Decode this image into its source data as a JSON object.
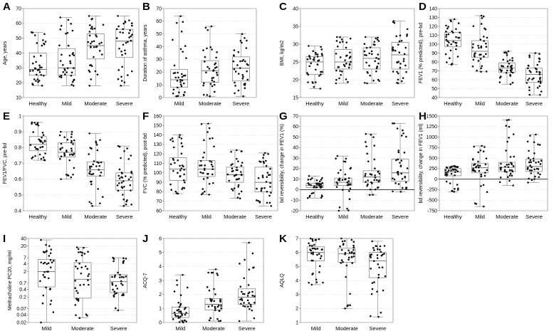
{
  "chart_data": [
    {
      "panel": "A",
      "type": "box",
      "ylabel": "Age, years",
      "ylim": [
        10,
        70
      ],
      "scale": "linear",
      "yticks": [
        10,
        20,
        30,
        40,
        50,
        60,
        70
      ],
      "categories": [
        "Healthy",
        "Mild",
        "Moderate",
        "Severe"
      ],
      "boxes": [
        {
          "min": 18,
          "q1": 25,
          "median": 29,
          "q3": 40,
          "max": 54
        },
        {
          "min": 18,
          "q1": 25,
          "median": 30,
          "q3": 43,
          "max": 64
        },
        {
          "min": 18,
          "q1": 36,
          "median": 45,
          "q3": 53,
          "max": 65
        },
        {
          "min": 18,
          "q1": 37,
          "median": 48,
          "q3": 56,
          "max": 65
        }
      ]
    },
    {
      "panel": "B",
      "type": "box",
      "ylabel": "Duration of asthma, years",
      "ylim": [
        0,
        70
      ],
      "scale": "linear",
      "yticks": [
        0,
        10,
        20,
        30,
        40,
        50,
        60,
        70
      ],
      "categories": [
        "Mild",
        "Moderate",
        "Severe"
      ],
      "boxes": [
        {
          "min": 1,
          "q1": 8,
          "median": 14,
          "q3": 22,
          "max": 64
        },
        {
          "min": 1,
          "q1": 12,
          "median": 21,
          "q3": 29,
          "max": 56
        },
        {
          "min": 1,
          "q1": 13,
          "median": 23,
          "q3": 32,
          "max": 50
        }
      ]
    },
    {
      "panel": "C",
      "type": "box",
      "ylabel": "BMI, kg/m2",
      "ylim": [
        15,
        40
      ],
      "scale": "linear",
      "yticks": [
        15,
        20,
        25,
        30,
        35,
        40
      ],
      "categories": [
        "Healthy",
        "Mild",
        "Moderate",
        "Severe"
      ],
      "boxes": [
        {
          "min": 17.5,
          "q1": 21.5,
          "median": 25,
          "q3": 26.5,
          "max": 29.5
        },
        {
          "min": 19,
          "q1": 23,
          "median": 25,
          "q3": 28.5,
          "max": 32
        },
        {
          "min": 19,
          "q1": 23,
          "median": 26,
          "q3": 29,
          "max": 32
        },
        {
          "min": 19,
          "q1": 23,
          "median": 27,
          "q3": 30.5,
          "max": 36.5
        }
      ]
    },
    {
      "panel": "D",
      "type": "box",
      "ylabel": "FEV1 (% predicted), pre-bd",
      "ylim": [
        40,
        140
      ],
      "scale": "linear",
      "yticks": [
        40,
        50,
        60,
        70,
        80,
        90,
        100,
        110,
        120,
        130,
        140
      ],
      "categories": [
        "Healthy",
        "Mild",
        "Moderate",
        "Severe"
      ],
      "boxes": [
        {
          "min": 77,
          "q1": 97,
          "median": 104,
          "q3": 113,
          "max": 128
        },
        {
          "min": 69,
          "q1": 85,
          "median": 92,
          "q3": 104,
          "max": 132
        },
        {
          "min": 55,
          "q1": 68,
          "median": 73,
          "q3": 79,
          "max": 92
        },
        {
          "min": 43,
          "q1": 57,
          "median": 66,
          "q3": 73,
          "max": 90
        }
      ]
    },
    {
      "panel": "E",
      "type": "box",
      "ylabel": "FEV1/FVC, pre-bd",
      "ylim": [
        0.4,
        1.0
      ],
      "scale": "linear",
      "yticks": [
        0.4,
        0.5,
        0.6,
        0.7,
        0.8,
        0.9,
        1.0
      ],
      "ytick_labels": [
        "0.4",
        "0.5",
        "0.6",
        "0.7",
        "0.8",
        "0.9",
        "1"
      ],
      "categories": [
        "Healthy",
        "Mild",
        "Moderate",
        "Severe"
      ],
      "boxes": [
        {
          "min": 0.72,
          "q1": 0.78,
          "median": 0.82,
          "q3": 0.87,
          "max": 0.96
        },
        {
          "min": 0.6,
          "q1": 0.74,
          "median": 0.77,
          "q3": 0.83,
          "max": 0.9
        },
        {
          "min": 0.43,
          "q1": 0.62,
          "median": 0.66,
          "q3": 0.71,
          "max": 0.89
        },
        {
          "min": 0.43,
          "q1": 0.53,
          "median": 0.59,
          "q3": 0.64,
          "max": 0.81
        }
      ]
    },
    {
      "panel": "F",
      "type": "box",
      "ylabel": "FVC (% predicted), post-bd",
      "ylim": [
        60,
        160
      ],
      "scale": "linear",
      "yticks": [
        60,
        70,
        80,
        90,
        100,
        110,
        120,
        130,
        140,
        150,
        160
      ],
      "categories": [
        "Healthy",
        "Mild",
        "Moderate",
        "Severe"
      ],
      "boxes": [
        {
          "min": 78,
          "q1": 92,
          "median": 104,
          "q3": 116,
          "max": 140
        },
        {
          "min": 77,
          "q1": 96,
          "median": 104,
          "q3": 113,
          "max": 152
        },
        {
          "min": 73,
          "q1": 90,
          "median": 98,
          "q3": 106,
          "max": 124
        },
        {
          "min": 65,
          "q1": 80,
          "median": 90,
          "q3": 106,
          "max": 121
        }
      ]
    },
    {
      "panel": "G",
      "type": "box",
      "ylabel": "bd reversibility, change in FEV1 (%)",
      "ylim": [
        -20,
        70
      ],
      "scale": "linear",
      "yticks": [
        -20,
        -10,
        0,
        10,
        20,
        30,
        40,
        50,
        60,
        70
      ],
      "zero_line": true,
      "categories": [
        "Healthy",
        "Mild",
        "Moderate",
        "Severe"
      ],
      "boxes": [
        {
          "min": -8,
          "q1": 2,
          "median": 4,
          "q3": 6,
          "max": 13
        },
        {
          "min": -20,
          "q1": 4,
          "median": 7,
          "q3": 11,
          "max": 32
        },
        {
          "min": -5,
          "q1": 7,
          "median": 12,
          "q3": 18,
          "max": 53
        },
        {
          "min": -2,
          "q1": 8,
          "median": 16,
          "q3": 29,
          "max": 63
        }
      ]
    },
    {
      "panel": "H",
      "type": "box",
      "ylabel": "bd reversibility, change in FEV1 (ml)",
      "ylim": [
        -750,
        1500
      ],
      "scale": "linear",
      "yticks": [
        -750,
        -500,
        -250,
        0,
        250,
        500,
        750,
        1000,
        1250,
        1500
      ],
      "zero_line": true,
      "categories": [
        "Healthy",
        "Mild",
        "Moderate",
        "Severe"
      ],
      "boxes": [
        {
          "min": -300,
          "q1": 80,
          "median": 170,
          "q3": 250,
          "max": 310
        },
        {
          "min": -650,
          "q1": 150,
          "median": 270,
          "q3": 380,
          "max": 790
        },
        {
          "min": -150,
          "q1": 180,
          "median": 280,
          "q3": 400,
          "max": 1410
        },
        {
          "min": -80,
          "q1": 180,
          "median": 300,
          "q3": 480,
          "max": 1060
        }
      ]
    },
    {
      "panel": "I",
      "type": "box",
      "ylabel": "Methacholine PC20, mg/ml",
      "ylim": [
        0.02,
        40
      ],
      "scale": "log",
      "yticks": [
        0.02,
        0.04,
        0.07,
        0.2,
        0.4,
        0.7,
        2,
        4,
        7,
        20,
        40
      ],
      "ytick_labels": [
        "0.02",
        "0.04",
        "0.07",
        "0.2",
        "0.4",
        "0.7",
        "2",
        "4",
        "7",
        "20",
        "40"
      ],
      "categories": [
        "Mild",
        "Moderate",
        "Severe"
      ],
      "boxes": [
        {
          "min": 0.02,
          "q1": 0.5,
          "median": 2.0,
          "q3": 6.0,
          "max": 35
        },
        {
          "min": 0.03,
          "q1": 0.18,
          "median": 1.0,
          "q3": 4.5,
          "max": 18
        },
        {
          "min": 0.06,
          "q1": 0.3,
          "median": 0.8,
          "q3": 1.5,
          "max": 7
        }
      ]
    },
    {
      "panel": "J",
      "type": "box",
      "ylabel": "ACQ-7",
      "ylim": [
        0,
        6
      ],
      "scale": "linear",
      "yticks": [
        0,
        1,
        2,
        3,
        4,
        5,
        6
      ],
      "categories": [
        "Mild",
        "Moderate",
        "Severe"
      ],
      "boxes": [
        {
          "min": 0,
          "q1": 0.35,
          "median": 0.65,
          "q3": 1.1,
          "max": 3.4
        },
        {
          "min": 0.1,
          "q1": 0.9,
          "median": 1.3,
          "q3": 1.7,
          "max": 3.8
        },
        {
          "min": 0.1,
          "q1": 1.3,
          "median": 1.8,
          "q3": 2.4,
          "max": 5.7
        }
      ]
    },
    {
      "panel": "K",
      "type": "box",
      "ylabel": "AQLQ",
      "ylim": [
        1,
        7
      ],
      "scale": "linear",
      "yticks": [
        1,
        2,
        3,
        4,
        5,
        6,
        7
      ],
      "categories": [
        "Mild",
        "Moderate",
        "Severe"
      ],
      "boxes": [
        {
          "min": 3.7,
          "q1": 5.4,
          "median": 6.0,
          "q3": 6.4,
          "max": 7.0
        },
        {
          "min": 2.0,
          "q1": 5.3,
          "median": 5.9,
          "q3": 6.3,
          "max": 7.0
        },
        {
          "min": 1.4,
          "q1": 4.2,
          "median": 5.4,
          "q3": 6.0,
          "max": 6.8
        }
      ]
    }
  ]
}
